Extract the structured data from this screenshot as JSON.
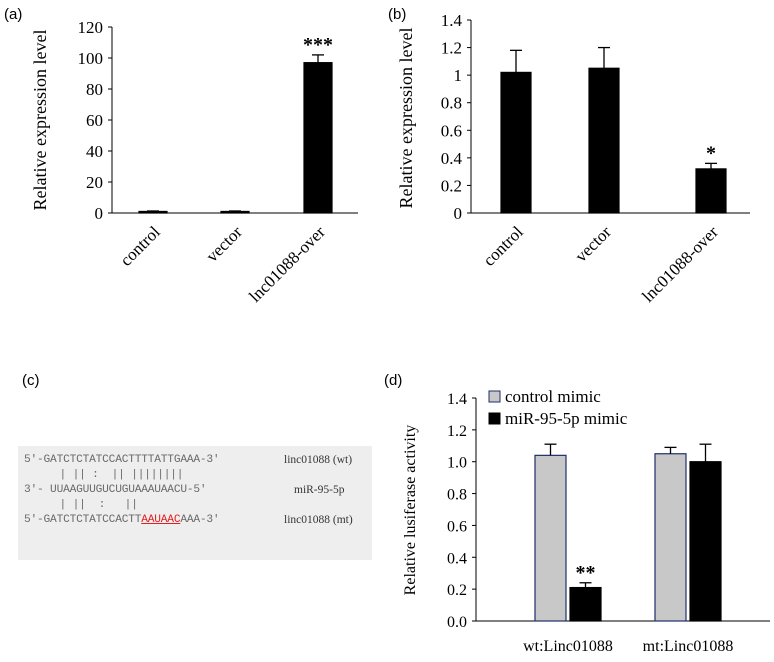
{
  "panels": {
    "a": "(a)",
    "b": "(b)",
    "c": "(c)",
    "d": "(d)"
  },
  "chart_data": [
    {
      "type": "bar",
      "ylabel": "Relative expression level",
      "xlabel": "",
      "ylim": [
        0,
        120
      ],
      "yticks": [
        "0",
        "20",
        "40",
        "60",
        "80",
        "100",
        "120"
      ],
      "categories": [
        "control",
        "vector",
        "lnc01088-over"
      ],
      "values": [
        1,
        1,
        97
      ],
      "errors": [
        0.3,
        0.3,
        5
      ],
      "annotations": [
        "",
        "",
        "***"
      ]
    },
    {
      "type": "bar",
      "ylabel": "Relative expression level",
      "xlabel": "",
      "ylim": [
        0,
        1.4
      ],
      "yticks": [
        "0",
        "0.2",
        "0.4",
        "0.6",
        "0.8",
        "1",
        "1.2",
        "1.4"
      ],
      "categories": [
        "control",
        "vector",
        "lnc01088-over"
      ],
      "values": [
        1.02,
        1.05,
        0.32
      ],
      "errors": [
        0.16,
        0.15,
        0.04
      ],
      "annotations": [
        "",
        "",
        "*"
      ]
    },
    {
      "type": "bar",
      "ylabel": "Relative lusiferase activity",
      "xlabel": "",
      "ylim": [
        0,
        1.4
      ],
      "yticks": [
        "0.0",
        "0.2",
        "0.4",
        "0.6",
        "0.8",
        "1.0",
        "1.2",
        "1.4"
      ],
      "categories": [
        "wt:Linc01088",
        "mt:Linc01088"
      ],
      "legend_position": "top-left",
      "series": [
        {
          "name": "control mimic",
          "values": [
            1.04,
            1.05
          ],
          "errors": [
            0.07,
            0.04
          ],
          "color": "#c8c8c8"
        },
        {
          "name": "miR-95-5p mimic",
          "values": [
            0.21,
            1.0
          ],
          "errors": [
            0.03,
            0.11
          ],
          "color": "#000000"
        }
      ],
      "annotations": [
        [
          "",
          "**"
        ],
        [
          "",
          ""
        ]
      ]
    }
  ],
  "sequence": {
    "wt_seq": "5'-GATCTCTATCCACTTTTATTGAAA-3'",
    "wt_label": "linc01088 (wt)",
    "pair1": "   | || :  || ||||||||",
    "mirna_seq": "3'- UUAAGUUGUCUGUAAAUAACU-5'",
    "mirna_label": "miR-95-5p",
    "pair2": "   | ||  :   ||",
    "mt_seq_prefix": "5'-GATCTCTATCCACTT",
    "mt_seq_mut": "AAUAAC",
    "mt_seq_suffix": "AAA-3'",
    "mt_label": "linc01088 (mt)"
  }
}
